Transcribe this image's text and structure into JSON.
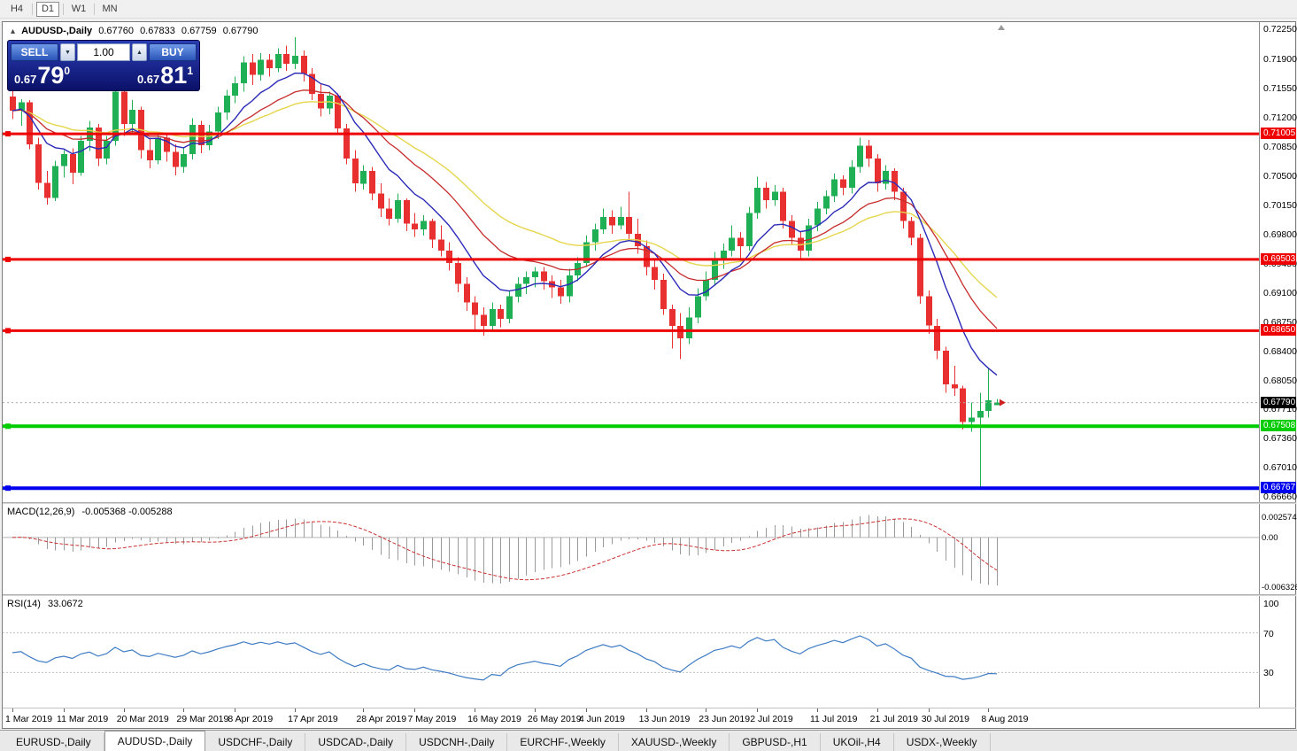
{
  "toolbar": {
    "timeframes": [
      {
        "label": "H4",
        "active": false
      },
      {
        "label": "D1",
        "active": true
      },
      {
        "label": "W1",
        "active": false
      },
      {
        "label": "MN",
        "active": false
      }
    ]
  },
  "chart_header": {
    "icon": "▴",
    "symbol": "AUDUSD-,Daily",
    "open": "0.67760",
    "high": "0.67833",
    "low": "0.67759",
    "close": "0.67790"
  },
  "trade_panel": {
    "sell_label": "SELL",
    "buy_label": "BUY",
    "volume": "1.00",
    "spin_down": "▼",
    "spin_up": "▲",
    "sell_price": {
      "big": "0.67",
      "pips": "79",
      "sup": "0"
    },
    "buy_price": {
      "big": "0.67",
      "pips": "81",
      "sup": "1"
    }
  },
  "macd_panel": {
    "label": "MACD(12,26,9)",
    "values": "-0.005368 -0.005288",
    "params": {
      "fast": 12,
      "slow": 26,
      "signal": 9
    },
    "scale": {
      "max": 0.0034,
      "min": -0.0066
    },
    "scale_labels": [
      {
        "label": "0.002574",
        "value": 0.002574
      },
      {
        "label": "0.00",
        "value": 0
      },
      {
        "label": "-0.006326",
        "value": -0.006326
      }
    ]
  },
  "rsi_panel": {
    "label": "RSI(14)",
    "value": "33.0672",
    "period": 14,
    "level_lines": [
      70,
      30
    ],
    "scale_labels": [
      {
        "label": "100",
        "value": 100
      },
      {
        "label": "70",
        "value": 70
      },
      {
        "label": "30",
        "value": 30
      }
    ]
  },
  "tabs": [
    {
      "label": "EURUSD-,Daily",
      "active": false
    },
    {
      "label": "AUDUSD-,Daily",
      "active": true
    },
    {
      "label": "USDCHF-,Daily",
      "active": false
    },
    {
      "label": "USDCAD-,Daily",
      "active": false
    },
    {
      "label": "USDCNH-,Daily",
      "active": false
    },
    {
      "label": "EURCHF-,Weekly",
      "active": false
    },
    {
      "label": "XAUUSD-,Weekly",
      "active": false
    },
    {
      "label": "GBPUSD-,H1",
      "active": false
    },
    {
      "label": "UKOil-,H4",
      "active": false
    },
    {
      "label": "USDX-,Weekly",
      "active": false
    }
  ],
  "chart_data": {
    "type": "candlestick",
    "symbol": "AUDUSD-",
    "timeframe": "Daily",
    "y_axis": {
      "max": 0.7234,
      "min": 0.666,
      "tick_labels": [
        "0.72250",
        "0.71900",
        "0.71550",
        "0.71200",
        "0.70850",
        "0.70500",
        "0.70150",
        "0.69800",
        "0.69450",
        "0.69100",
        "0.68750",
        "0.68400",
        "0.68050",
        "0.67710",
        "0.67360",
        "0.67010",
        "0.66660"
      ]
    },
    "x_labels": [
      {
        "label": "1 Mar 2019",
        "index": 0
      },
      {
        "label": "11 Mar 2019",
        "index": 6
      },
      {
        "label": "20 Mar 2019",
        "index": 13
      },
      {
        "label": "29 Mar 2019",
        "index": 20
      },
      {
        "label": "8 Apr 2019",
        "index": 26
      },
      {
        "label": "17 Apr 2019",
        "index": 33
      },
      {
        "label": "28 Apr 2019",
        "index": 41
      },
      {
        "label": "7 May 2019",
        "index": 47
      },
      {
        "label": "16 May 2019",
        "index": 54
      },
      {
        "label": "26 May 2019",
        "index": 61
      },
      {
        "label": "4 Jun 2019",
        "index": 67
      },
      {
        "label": "13 Jun 2019",
        "index": 74
      },
      {
        "label": "23 Jun 2019",
        "index": 81
      },
      {
        "label": "2 Jul 2019",
        "index": 87
      },
      {
        "label": "11 Jul 2019",
        "index": 94
      },
      {
        "label": "21 Jul 2019",
        "index": 101
      },
      {
        "label": "30 Jul 2019",
        "index": 107
      },
      {
        "label": "8 Aug 2019",
        "index": 114
      }
    ],
    "hlines": [
      {
        "price": 0.71005,
        "label": "0.71005",
        "color": "#EE0000",
        "width": 3
      },
      {
        "price": 0.69503,
        "label": "0.69503",
        "color": "#EE0000",
        "width": 3
      },
      {
        "price": 0.6865,
        "label": "0.68650",
        "color": "#EE0000",
        "width": 3
      },
      {
        "price": 0.67508,
        "label": "0.67508",
        "color": "#00CC00",
        "width": 4
      },
      {
        "price": 0.66767,
        "label": "0.66767",
        "color": "#0000EE",
        "width": 4
      }
    ],
    "bid": {
      "price": 0.6779,
      "label": "0.67790",
      "box_color": "#000000"
    },
    "moving_averages": [
      {
        "name": "ma-slow",
        "period": 30,
        "color": "#E5D64E",
        "width": 1.4
      },
      {
        "name": "ma-medium",
        "period": 18,
        "color": "#C62B2B",
        "width": 1.3
      },
      {
        "name": "ma-fast",
        "period": 9,
        "color": "#2B2BB8",
        "width": 1.4
      }
    ],
    "colors": {
      "up": "#1FAF55",
      "down": "#E93030",
      "macd_histogram": "#9A9A9A",
      "macd_signal": "#CC3232",
      "rsi_line": "#3F7CC4"
    },
    "candles": [
      [
        "2019.03.01",
        0.7145,
        0.7152,
        0.7118,
        0.7128
      ],
      [
        "2019.03.04",
        0.7128,
        0.7142,
        0.711,
        0.7138
      ],
      [
        "2019.03.05",
        0.7138,
        0.7141,
        0.7082,
        0.7088
      ],
      [
        "2019.03.06",
        0.7088,
        0.7096,
        0.7034,
        0.7042
      ],
      [
        "2019.03.07",
        0.7042,
        0.7056,
        0.7016,
        0.7024
      ],
      [
        "2019.03.08",
        0.7024,
        0.7068,
        0.702,
        0.7062
      ],
      [
        "2019.03.11",
        0.7062,
        0.7081,
        0.7048,
        0.7076
      ],
      [
        "2019.03.12",
        0.7076,
        0.7083,
        0.704,
        0.7054
      ],
      [
        "2019.03.13",
        0.7054,
        0.7098,
        0.705,
        0.7092
      ],
      [
        "2019.03.14",
        0.7092,
        0.7116,
        0.708,
        0.7108
      ],
      [
        "2019.03.15",
        0.7108,
        0.7112,
        0.7062,
        0.7071
      ],
      [
        "2019.03.18",
        0.7071,
        0.7098,
        0.7064,
        0.7092
      ],
      [
        "2019.03.19",
        0.7092,
        0.7176,
        0.7086,
        0.7151
      ],
      [
        "2019.03.20",
        0.7151,
        0.7169,
        0.7098,
        0.7112
      ],
      [
        "2019.03.21",
        0.7112,
        0.7141,
        0.71,
        0.7129
      ],
      [
        "2019.03.22",
        0.7129,
        0.7133,
        0.7071,
        0.7081
      ],
      [
        "2019.03.25",
        0.7081,
        0.7096,
        0.7059,
        0.7069
      ],
      [
        "2019.03.26",
        0.7069,
        0.7103,
        0.7064,
        0.7096
      ],
      [
        "2019.03.27",
        0.7096,
        0.7101,
        0.7067,
        0.7079
      ],
      [
        "2019.03.28",
        0.7079,
        0.7088,
        0.7051,
        0.7061
      ],
      [
        "2019.03.29",
        0.7061,
        0.7083,
        0.7054,
        0.7076
      ],
      [
        "2019.04.01",
        0.7076,
        0.7119,
        0.707,
        0.7111
      ],
      [
        "2019.04.02",
        0.7111,
        0.7116,
        0.7077,
        0.7087
      ],
      [
        "2019.04.03",
        0.7087,
        0.7111,
        0.7081,
        0.7103
      ],
      [
        "2019.04.04",
        0.7103,
        0.7133,
        0.7094,
        0.7126
      ],
      [
        "2019.04.05",
        0.7126,
        0.7153,
        0.7117,
        0.7146
      ],
      [
        "2019.04.08",
        0.7146,
        0.7169,
        0.7137,
        0.7161
      ],
      [
        "2019.04.09",
        0.7161,
        0.7193,
        0.7151,
        0.7186
      ],
      [
        "2019.04.10",
        0.7186,
        0.7196,
        0.7159,
        0.7171
      ],
      [
        "2019.04.11",
        0.7171,
        0.7197,
        0.7164,
        0.7189
      ],
      [
        "2019.04.12",
        0.7189,
        0.7196,
        0.7169,
        0.7179
      ],
      [
        "2019.04.15",
        0.7179,
        0.7203,
        0.7174,
        0.7196
      ],
      [
        "2019.04.16",
        0.7196,
        0.7206,
        0.7176,
        0.7184
      ],
      [
        "2019.04.17",
        0.7184,
        0.7216,
        0.7178,
        0.7194
      ],
      [
        "2019.04.18",
        0.7194,
        0.72,
        0.7163,
        0.7172
      ],
      [
        "2019.04.19",
        0.7172,
        0.7179,
        0.7141,
        0.7148
      ],
      [
        "2019.04.22",
        0.7148,
        0.716,
        0.7121,
        0.7131
      ],
      [
        "2019.04.23",
        0.7131,
        0.7151,
        0.7124,
        0.7146
      ],
      [
        "2019.04.24",
        0.7146,
        0.7149,
        0.7099,
        0.7107
      ],
      [
        "2019.04.25",
        0.7107,
        0.7112,
        0.7064,
        0.7071
      ],
      [
        "2019.04.26",
        0.7071,
        0.7081,
        0.7031,
        0.7041
      ],
      [
        "2019.04.29",
        0.7041,
        0.7063,
        0.7034,
        0.7056
      ],
      [
        "2019.04.30",
        0.7056,
        0.7061,
        0.7021,
        0.7029
      ],
      [
        "2019.05.01",
        0.7029,
        0.7041,
        0.7001,
        0.7011
      ],
      [
        "2019.05.02",
        0.7011,
        0.7023,
        0.6991,
        0.6999
      ],
      [
        "2019.05.03",
        0.6999,
        0.7029,
        0.6994,
        0.7021
      ],
      [
        "2019.05.06",
        0.7021,
        0.7023,
        0.6984,
        0.6993
      ],
      [
        "2019.05.07",
        0.6993,
        0.7006,
        0.6977,
        0.6986
      ],
      [
        "2019.05.08",
        0.6986,
        0.7003,
        0.6979,
        0.6996
      ],
      [
        "2019.05.09",
        0.6996,
        0.6999,
        0.6964,
        0.6974
      ],
      [
        "2019.05.10",
        0.6974,
        0.6991,
        0.6954,
        0.6961
      ],
      [
        "2019.05.13",
        0.6961,
        0.6971,
        0.6937,
        0.6946
      ],
      [
        "2019.05.14",
        0.6946,
        0.6953,
        0.6911,
        0.6921
      ],
      [
        "2019.05.15",
        0.6921,
        0.6929,
        0.6889,
        0.6899
      ],
      [
        "2019.05.16",
        0.6899,
        0.6906,
        0.6866,
        0.6884
      ],
      [
        "2019.05.17",
        0.6884,
        0.6893,
        0.6859,
        0.6871
      ],
      [
        "2019.05.20",
        0.6871,
        0.6899,
        0.6864,
        0.6891
      ],
      [
        "2019.05.21",
        0.6891,
        0.6896,
        0.6869,
        0.6879
      ],
      [
        "2019.05.22",
        0.6879,
        0.6913,
        0.6874,
        0.6906
      ],
      [
        "2019.05.23",
        0.6906,
        0.6929,
        0.6899,
        0.6921
      ],
      [
        "2019.05.24",
        0.6921,
        0.6936,
        0.6909,
        0.6929
      ],
      [
        "2019.05.27",
        0.6929,
        0.6941,
        0.6917,
        0.6936
      ],
      [
        "2019.05.28",
        0.6936,
        0.6941,
        0.6914,
        0.6924
      ],
      [
        "2019.05.29",
        0.6924,
        0.6931,
        0.6904,
        0.6917
      ],
      [
        "2019.05.30",
        0.6917,
        0.6926,
        0.6897,
        0.6906
      ],
      [
        "2019.05.31",
        0.6906,
        0.6939,
        0.6899,
        0.6931
      ],
      [
        "2019.06.03",
        0.6931,
        0.6953,
        0.6924,
        0.6946
      ],
      [
        "2019.06.04",
        0.6946,
        0.6979,
        0.6941,
        0.6971
      ],
      [
        "2019.06.05",
        0.6971,
        0.6993,
        0.6961,
        0.6986
      ],
      [
        "2019.06.06",
        0.6986,
        0.7011,
        0.6981,
        0.7001
      ],
      [
        "2019.06.07",
        0.7001,
        0.7009,
        0.6981,
        0.6991
      ],
      [
        "2019.06.10",
        0.6991,
        0.7013,
        0.6986,
        0.7001
      ],
      [
        "2019.06.11",
        0.7001,
        0.7031,
        0.6974,
        0.6981
      ],
      [
        "2019.06.12",
        0.6981,
        0.6999,
        0.6957,
        0.6966
      ],
      [
        "2019.06.13",
        0.6966,
        0.6973,
        0.6931,
        0.6941
      ],
      [
        "2019.06.14",
        0.6941,
        0.6949,
        0.6914,
        0.6926
      ],
      [
        "2019.06.17",
        0.6926,
        0.6933,
        0.6884,
        0.6891
      ],
      [
        "2019.06.18",
        0.6891,
        0.6896,
        0.6844,
        0.6871
      ],
      [
        "2019.06.19",
        0.6871,
        0.6886,
        0.6831,
        0.6856
      ],
      [
        "2019.06.20",
        0.6856,
        0.6893,
        0.6849,
        0.6881
      ],
      [
        "2019.06.21",
        0.6881,
        0.6916,
        0.6874,
        0.6906
      ],
      [
        "2019.06.24",
        0.6906,
        0.6936,
        0.6901,
        0.6926
      ],
      [
        "2019.06.25",
        0.6926,
        0.6959,
        0.6919,
        0.6951
      ],
      [
        "2019.06.26",
        0.6951,
        0.6969,
        0.6939,
        0.6961
      ],
      [
        "2019.06.27",
        0.6961,
        0.6991,
        0.6954,
        0.6976
      ],
      [
        "2019.06.28",
        0.6976,
        0.6983,
        0.6951,
        0.6966
      ],
      [
        "2019.07.01",
        0.6966,
        0.7013,
        0.6961,
        0.7006
      ],
      [
        "2019.07.02",
        0.7006,
        0.7049,
        0.6999,
        0.7036
      ],
      [
        "2019.07.03",
        0.7036,
        0.7043,
        0.7011,
        0.7021
      ],
      [
        "2019.07.04",
        0.7021,
        0.7039,
        0.7014,
        0.7031
      ],
      [
        "2019.07.05",
        0.7031,
        0.7036,
        0.6987,
        0.6996
      ],
      [
        "2019.07.08",
        0.6996,
        0.7003,
        0.6967,
        0.6976
      ],
      [
        "2019.07.09",
        0.6976,
        0.6983,
        0.6951,
        0.6961
      ],
      [
        "2019.07.10",
        0.6961,
        0.6999,
        0.6954,
        0.6991
      ],
      [
        "2019.07.11",
        0.6991,
        0.7019,
        0.6984,
        0.7011
      ],
      [
        "2019.07.12",
        0.7011,
        0.7033,
        0.7004,
        0.7026
      ],
      [
        "2019.07.15",
        0.7026,
        0.7053,
        0.7019,
        0.7046
      ],
      [
        "2019.07.16",
        0.7046,
        0.7051,
        0.7027,
        0.7036
      ],
      [
        "2019.07.17",
        0.7036,
        0.7069,
        0.7029,
        0.7061
      ],
      [
        "2019.07.18",
        0.7061,
        0.7096,
        0.7054,
        0.7086
      ],
      [
        "2019.07.19",
        0.7086,
        0.7093,
        0.7061,
        0.7071
      ],
      [
        "2019.07.22",
        0.7071,
        0.7076,
        0.7031,
        0.7041
      ],
      [
        "2019.07.23",
        0.7041,
        0.7063,
        0.7034,
        0.7056
      ],
      [
        "2019.07.24",
        0.7056,
        0.7059,
        0.7021,
        0.7031
      ],
      [
        "2019.07.25",
        0.7031,
        0.7036,
        0.6987,
        0.6996
      ],
      [
        "2019.07.26",
        0.6996,
        0.7001,
        0.6967,
        0.6976
      ],
      [
        "2019.07.29",
        0.6976,
        0.6981,
        0.6897,
        0.6906
      ],
      [
        "2019.07.30",
        0.6906,
        0.6913,
        0.6861,
        0.6871
      ],
      [
        "2019.07.31",
        0.6871,
        0.6879,
        0.6831,
        0.6841
      ],
      [
        "2019.08.01",
        0.6841,
        0.6846,
        0.6791,
        0.6801
      ],
      [
        "2019.08.02",
        0.6801,
        0.6823,
        0.6787,
        0.6796
      ],
      [
        "2019.08.05",
        0.6796,
        0.6799,
        0.6747,
        0.6756
      ],
      [
        "2019.08.06",
        0.6756,
        0.6779,
        0.6744,
        0.6761
      ],
      [
        "2019.08.07",
        0.6761,
        0.6791,
        0.6677,
        0.6769
      ],
      [
        "2019.08.08",
        0.6769,
        0.6821,
        0.6761,
        0.6782
      ],
      [
        "2019.08.09",
        0.6776,
        0.67833,
        0.67759,
        0.6779
      ]
    ]
  }
}
